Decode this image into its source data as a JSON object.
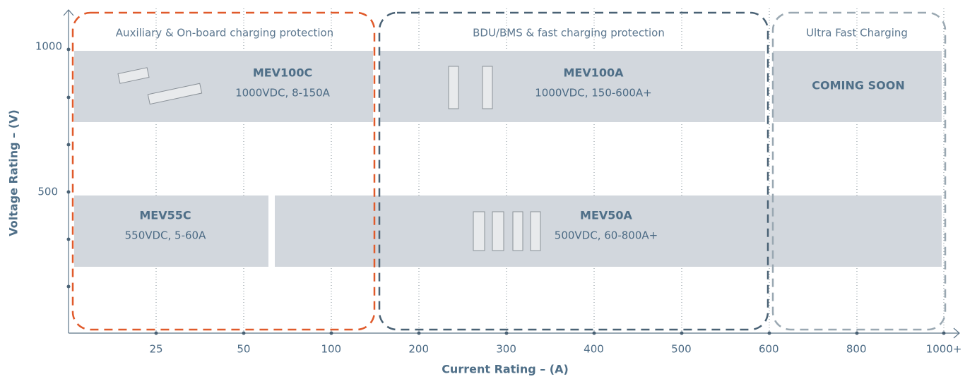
{
  "groups": [
    {
      "title": "Auxiliary & On-board charging protection"
    },
    {
      "title": "BDU/BMS & fast charging protection"
    },
    {
      "title": "Ultra Fast Charging"
    }
  ],
  "products": [
    {
      "name": "MEV100C",
      "spec": "1000VDC, 8-150A"
    },
    {
      "name": "MEV100A",
      "spec": "1000VDC, 150-600A+"
    },
    {
      "name": "COMING SOON"
    },
    {
      "name": "MEV55C",
      "spec": "550VDC, 5-60A"
    },
    {
      "name": "MEV50A",
      "spec": "500VDC, 60-800A+"
    }
  ],
  "axes": {
    "x_label": "Current Rating – (A)",
    "y_label": "Voltage Rating – (V)",
    "x_ticks": [
      "25",
      "50",
      "100",
      "200",
      "300",
      "400",
      "500",
      "600",
      "800",
      "1000+"
    ],
    "y_ticks": [
      "1000",
      "500"
    ]
  }
}
